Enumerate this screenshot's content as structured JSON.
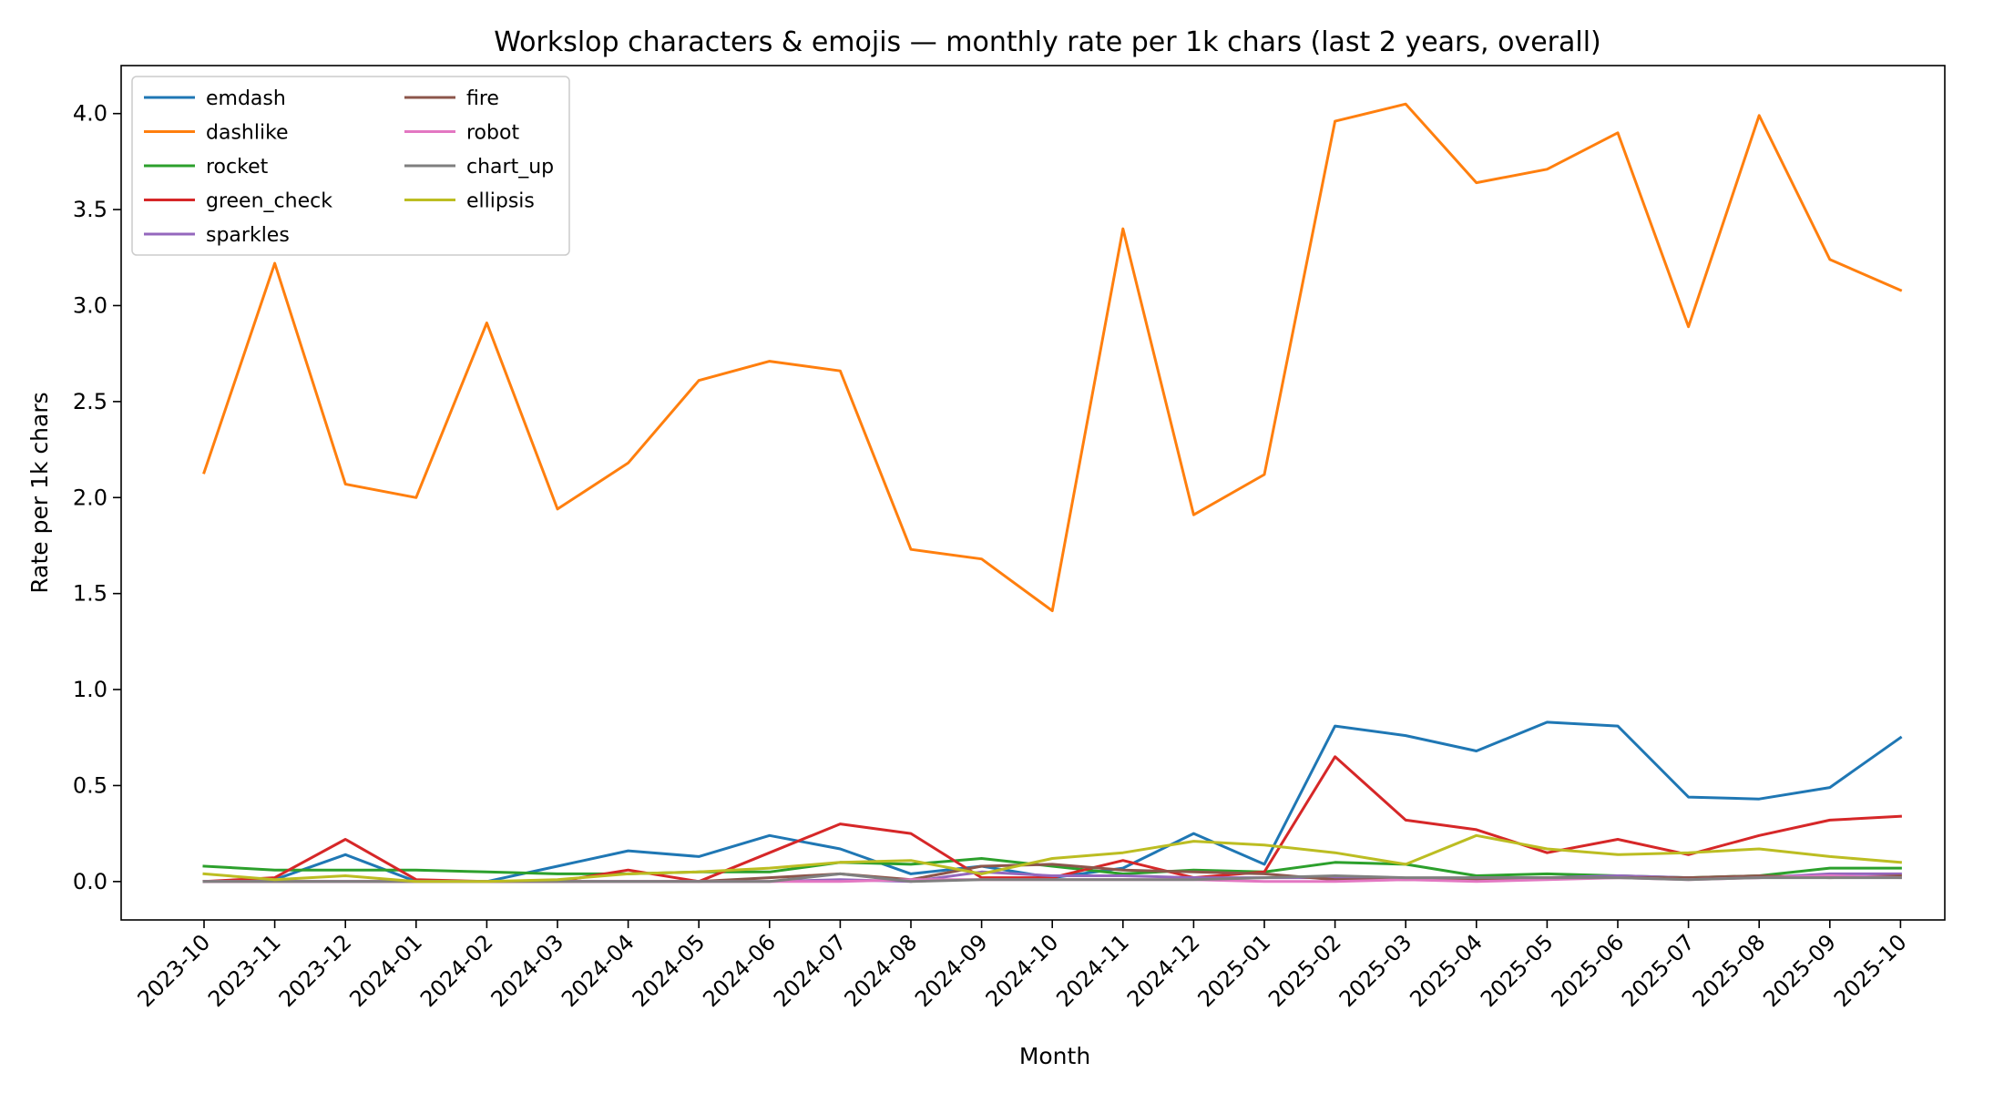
{
  "chart_data": {
    "type": "line",
    "title": "Workslop characters & emojis — monthly rate per 1k chars (last 2 years, overall)",
    "xlabel": "Month",
    "ylabel": "Rate per 1k chars",
    "ylim": [
      -0.2,
      4.25
    ],
    "yticks": [
      "0.0",
      "0.5",
      "1.0",
      "1.5",
      "2.0",
      "2.5",
      "3.0",
      "3.5",
      "4.0"
    ],
    "grid": false,
    "legend_position": "top-left",
    "categories": [
      "2023-10",
      "2023-11",
      "2023-12",
      "2024-01",
      "2024-02",
      "2024-03",
      "2024-04",
      "2024-05",
      "2024-06",
      "2024-07",
      "2024-08",
      "2024-09",
      "2024-10",
      "2024-11",
      "2024-12",
      "2025-01",
      "2025-02",
      "2025-03",
      "2025-04",
      "2025-05",
      "2025-06",
      "2025-07",
      "2025-08",
      "2025-09",
      "2025-10"
    ],
    "series": [
      {
        "name": "emdash",
        "color": "#1f77b4",
        "values": [
          0.0,
          0.01,
          0.14,
          0.0,
          0.0,
          0.08,
          0.16,
          0.13,
          0.24,
          0.17,
          0.04,
          0.08,
          0.02,
          0.07,
          0.25,
          0.09,
          0.81,
          0.76,
          0.68,
          0.83,
          0.81,
          0.44,
          0.43,
          0.49,
          0.75
        ]
      },
      {
        "name": "dashlike",
        "color": "#ff7f0e",
        "values": [
          2.13,
          3.22,
          2.07,
          2.0,
          2.91,
          1.94,
          2.18,
          2.61,
          2.71,
          2.66,
          1.73,
          1.68,
          1.41,
          3.4,
          1.91,
          2.12,
          3.96,
          4.05,
          3.64,
          3.71,
          3.9,
          2.89,
          3.99,
          3.24,
          3.08
        ]
      },
      {
        "name": "rocket",
        "color": "#2ca02c",
        "values": [
          0.08,
          0.06,
          0.06,
          0.06,
          0.05,
          0.04,
          0.04,
          0.05,
          0.05,
          0.1,
          0.09,
          0.12,
          0.08,
          0.04,
          0.06,
          0.05,
          0.1,
          0.09,
          0.03,
          0.04,
          0.03,
          0.02,
          0.03,
          0.07,
          0.07
        ]
      },
      {
        "name": "green_check",
        "color": "#d62728",
        "values": [
          0.0,
          0.02,
          0.22,
          0.01,
          0.0,
          0.0,
          0.06,
          0.0,
          0.15,
          0.3,
          0.25,
          0.02,
          0.02,
          0.11,
          0.02,
          0.05,
          0.65,
          0.32,
          0.27,
          0.15,
          0.22,
          0.14,
          0.24,
          0.32,
          0.34
        ]
      },
      {
        "name": "sparkles",
        "color": "#9467bd",
        "values": [
          0.0,
          0.0,
          0.0,
          0.0,
          0.0,
          0.0,
          0.0,
          0.0,
          0.0,
          0.01,
          0.0,
          0.05,
          0.03,
          0.03,
          0.02,
          0.02,
          0.02,
          0.01,
          0.02,
          0.02,
          0.03,
          0.02,
          0.02,
          0.04,
          0.04
        ]
      },
      {
        "name": "fire",
        "color": "#8c564b",
        "values": [
          0.0,
          0.0,
          0.0,
          0.0,
          0.0,
          0.0,
          0.0,
          0.0,
          0.02,
          0.04,
          0.01,
          0.08,
          0.09,
          0.06,
          0.05,
          0.04,
          0.01,
          0.01,
          0.01,
          0.02,
          0.02,
          0.02,
          0.03,
          0.02,
          0.03
        ]
      },
      {
        "name": "robot",
        "color": "#e377c2",
        "values": [
          0.0,
          0.0,
          0.0,
          0.0,
          0.0,
          0.0,
          0.0,
          0.0,
          0.0,
          0.0,
          0.01,
          0.01,
          0.01,
          0.01,
          0.01,
          0.0,
          0.0,
          0.01,
          0.0,
          0.01,
          0.02,
          0.01,
          0.02,
          0.03,
          0.02
        ]
      },
      {
        "name": "chart_up",
        "color": "#7f7f7f",
        "values": [
          0.0,
          0.0,
          0.0,
          0.0,
          0.0,
          0.0,
          0.0,
          0.0,
          0.0,
          0.04,
          0.0,
          0.01,
          0.01,
          0.01,
          0.01,
          0.02,
          0.03,
          0.02,
          0.02,
          0.02,
          0.02,
          0.01,
          0.02,
          0.02,
          0.02
        ]
      },
      {
        "name": "ellipsis",
        "color": "#bcbd22",
        "values": [
          0.04,
          0.01,
          0.03,
          0.0,
          0.0,
          0.01,
          0.04,
          0.05,
          0.07,
          0.1,
          0.11,
          0.04,
          0.12,
          0.15,
          0.21,
          0.19,
          0.15,
          0.09,
          0.24,
          0.17,
          0.14,
          0.15,
          0.17,
          0.13,
          0.1
        ]
      }
    ]
  }
}
